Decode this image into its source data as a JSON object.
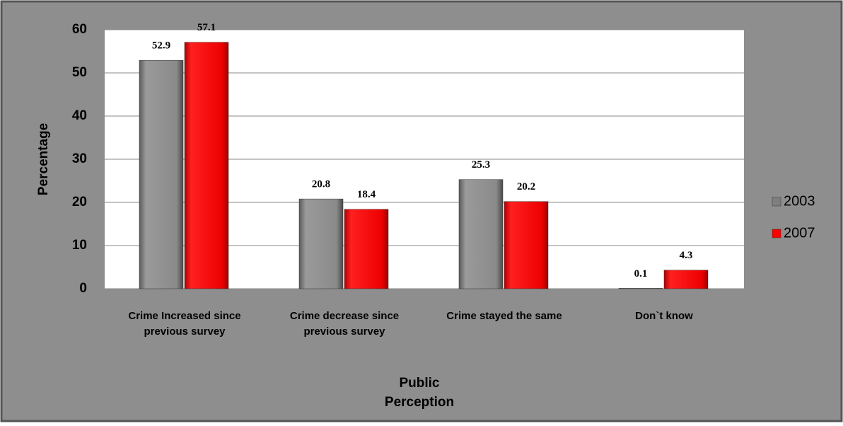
{
  "chart_data": {
    "type": "bar",
    "categories": [
      "Crime Increased since previous survey",
      "Crime decrease since previous survey",
      "Crime stayed the same",
      "Don`t know"
    ],
    "series": [
      {
        "name": "2003",
        "color": "#7f7f7f",
        "values": [
          52.9,
          20.8,
          25.3,
          0.1
        ]
      },
      {
        "name": "2007",
        "color": "#ff0000",
        "values": [
          57.1,
          18.4,
          20.2,
          4.3
        ]
      }
    ],
    "xlabel": "Public Perception",
    "ylabel": "Percentage",
    "ylim": [
      0,
      60
    ],
    "yticks": [
      0,
      10,
      20,
      30,
      40,
      50,
      60
    ],
    "grid": true,
    "legend": "right"
  }
}
